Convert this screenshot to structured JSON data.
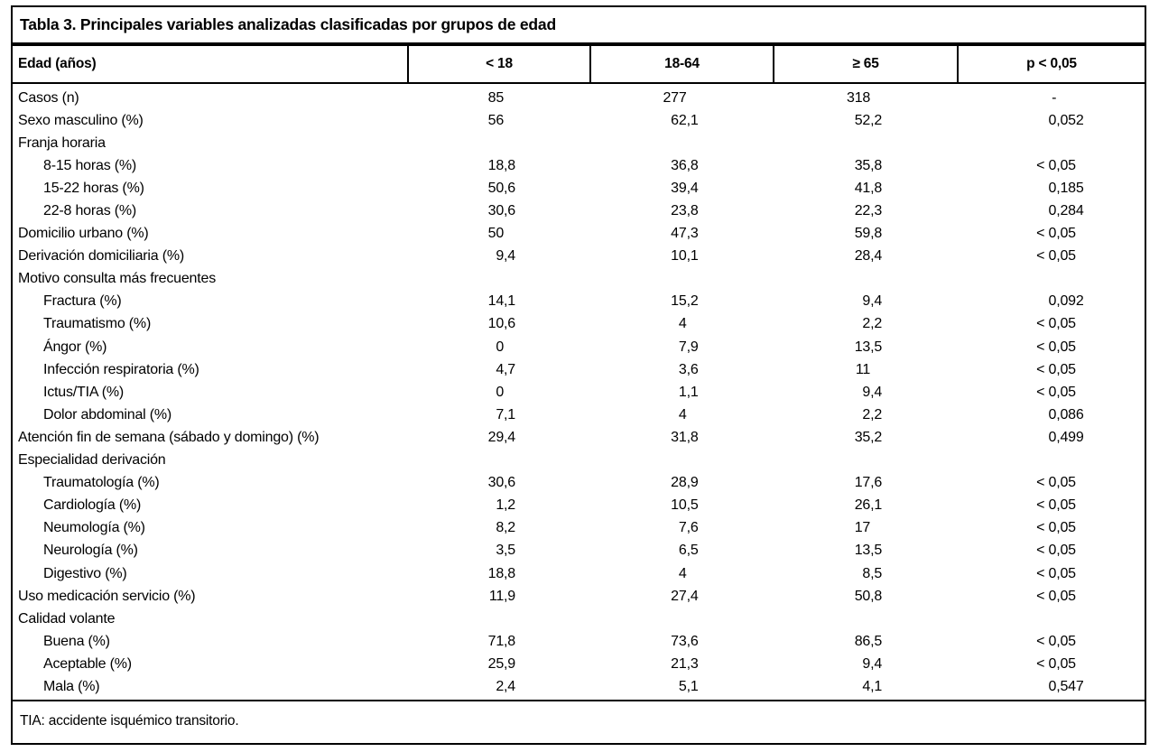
{
  "table": {
    "title": "Tabla 3. Principales variables analizadas clasificadas por grupos de edad",
    "columns": [
      "Edad (años)",
      "< 18",
      "18-64",
      "≥ 65",
      "p < 0,05"
    ],
    "rows": [
      {
        "label": "Casos (n)",
        "indent": false,
        "section": false,
        "values": [
          "85",
          "277",
          "318",
          "-"
        ]
      },
      {
        "label": "Sexo masculino (%)",
        "indent": false,
        "section": false,
        "values": [
          "56",
          "62,1",
          "52,2",
          "0,052"
        ]
      },
      {
        "label": "Franja horaria",
        "indent": false,
        "section": true,
        "values": [
          "",
          "",
          "",
          ""
        ]
      },
      {
        "label": "8-15 horas (%)",
        "indent": true,
        "section": false,
        "values": [
          "18,8",
          "36,8",
          "35,8",
          "< 0,05"
        ]
      },
      {
        "label": "15-22 horas (%)",
        "indent": true,
        "section": false,
        "values": [
          "50,6",
          "39,4",
          "41,8",
          "0,185"
        ]
      },
      {
        "label": "22-8 horas (%)",
        "indent": true,
        "section": false,
        "values": [
          "30,6",
          "23,8",
          "22,3",
          "0,284"
        ]
      },
      {
        "label": "Domicilio urbano (%)",
        "indent": false,
        "section": false,
        "values": [
          "50",
          "47,3",
          "59,8",
          "< 0,05"
        ]
      },
      {
        "label": "Derivación domiciliaria (%)",
        "indent": false,
        "section": false,
        "values": [
          "9,4",
          "10,1",
          "28,4",
          "< 0,05"
        ]
      },
      {
        "label": "Motivo consulta más frecuentes",
        "indent": false,
        "section": true,
        "values": [
          "",
          "",
          "",
          ""
        ]
      },
      {
        "label": "Fractura (%)",
        "indent": true,
        "section": false,
        "values": [
          "14,1",
          "15,2",
          "9,4",
          "0,092"
        ]
      },
      {
        "label": "Traumatismo (%)",
        "indent": true,
        "section": false,
        "values": [
          "10,6",
          "4",
          "2,2",
          "< 0,05"
        ]
      },
      {
        "label": "Ángor (%)",
        "indent": true,
        "section": false,
        "values": [
          "0",
          "7,9",
          "13,5",
          "< 0,05"
        ]
      },
      {
        "label": "Infección respiratoria (%)",
        "indent": true,
        "section": false,
        "values": [
          "4,7",
          "3,6",
          "11",
          "< 0,05"
        ]
      },
      {
        "label": "Ictus/TIA (%)",
        "indent": true,
        "section": false,
        "values": [
          "0",
          "1,1",
          "9,4",
          "< 0,05"
        ]
      },
      {
        "label": "Dolor abdominal (%)",
        "indent": true,
        "section": false,
        "values": [
          "7,1",
          "4",
          "2,2",
          "0,086"
        ]
      },
      {
        "label": "Atención fin de semana (sábado y domingo) (%)",
        "indent": false,
        "section": false,
        "values": [
          "29,4",
          "31,8",
          "35,2",
          "0,499"
        ]
      },
      {
        "label": "Especialidad derivación",
        "indent": false,
        "section": true,
        "values": [
          "",
          "",
          "",
          ""
        ]
      },
      {
        "label": "Traumatología (%)",
        "indent": true,
        "section": false,
        "values": [
          "30,6",
          "28,9",
          "17,6",
          "< 0,05"
        ]
      },
      {
        "label": "Cardiología (%)",
        "indent": true,
        "section": false,
        "values": [
          "1,2",
          "10,5",
          "26,1",
          "< 0,05"
        ]
      },
      {
        "label": "Neumología (%)",
        "indent": true,
        "section": false,
        "values": [
          "8,2",
          "7,6",
          "17",
          "< 0,05"
        ]
      },
      {
        "label": "Neurología (%)",
        "indent": true,
        "section": false,
        "values": [
          "3,5",
          "6,5",
          "13,5",
          "< 0,05"
        ]
      },
      {
        "label": "Digestivo (%)",
        "indent": true,
        "section": false,
        "values": [
          "18,8",
          "4",
          "8,5",
          "< 0,05"
        ]
      },
      {
        "label": "Uso medicación servicio (%)",
        "indent": false,
        "section": false,
        "values": [
          "11,9",
          "27,4",
          "50,8",
          "< 0,05"
        ]
      },
      {
        "label": "Calidad volante",
        "indent": false,
        "section": true,
        "values": [
          "",
          "",
          "",
          ""
        ]
      },
      {
        "label": "Buena (%)",
        "indent": true,
        "section": false,
        "values": [
          "71,8",
          "73,6",
          "86,5",
          "< 0,05"
        ]
      },
      {
        "label": "Aceptable (%)",
        "indent": true,
        "section": false,
        "values": [
          "25,9",
          "21,3",
          "9,4",
          "< 0,05"
        ]
      },
      {
        "label": "Mala (%)",
        "indent": true,
        "section": false,
        "values": [
          "2,4",
          "5,1",
          "4,1",
          "0,547"
        ]
      }
    ],
    "footnote": "TIA: accidente isquémico transitorio.",
    "colors": {
      "text": "#000000",
      "background": "#ffffff",
      "rule": "#000000"
    }
  }
}
